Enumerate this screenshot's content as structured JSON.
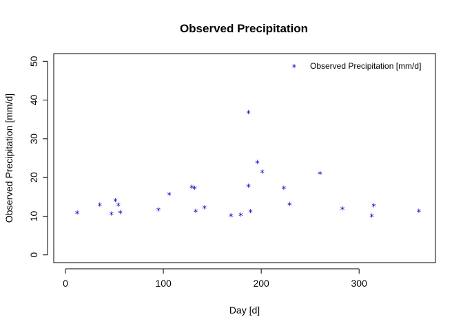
{
  "chart_data": {
    "type": "scatter",
    "title": "Observed Precipitation",
    "xlabel": "Day [d]",
    "ylabel": "Observed Precipitation [mm/d]",
    "xlim": [
      -12,
      378
    ],
    "ylim": [
      -2,
      52
    ],
    "xticks": [
      0,
      100,
      200,
      300
    ],
    "yticks": [
      0,
      10,
      20,
      30,
      40,
      50
    ],
    "grid": false,
    "legend_position": "top-right",
    "marker": "*",
    "color": "#0000cc",
    "series": [
      {
        "name": "Observed Precipitation [mm/d]",
        "points": [
          {
            "x": 12,
            "y": 11.0
          },
          {
            "x": 35,
            "y": 13.0
          },
          {
            "x": 47,
            "y": 10.7
          },
          {
            "x": 51,
            "y": 14.2
          },
          {
            "x": 54,
            "y": 13.0
          },
          {
            "x": 56,
            "y": 11.1
          },
          {
            "x": 95,
            "y": 11.8
          },
          {
            "x": 106,
            "y": 15.8
          },
          {
            "x": 129,
            "y": 17.6
          },
          {
            "x": 132,
            "y": 17.4
          },
          {
            "x": 133,
            "y": 11.4
          },
          {
            "x": 142,
            "y": 12.3
          },
          {
            "x": 169,
            "y": 10.3
          },
          {
            "x": 179,
            "y": 10.4
          },
          {
            "x": 187,
            "y": 36.9
          },
          {
            "x": 187,
            "y": 17.9
          },
          {
            "x": 189,
            "y": 11.3
          },
          {
            "x": 196,
            "y": 24.0
          },
          {
            "x": 201,
            "y": 21.5
          },
          {
            "x": 223,
            "y": 17.4
          },
          {
            "x": 229,
            "y": 13.2
          },
          {
            "x": 260,
            "y": 21.2
          },
          {
            "x": 283,
            "y": 12.0
          },
          {
            "x": 313,
            "y": 10.2
          },
          {
            "x": 315,
            "y": 12.8
          },
          {
            "x": 361,
            "y": 11.4
          }
        ]
      }
    ]
  }
}
